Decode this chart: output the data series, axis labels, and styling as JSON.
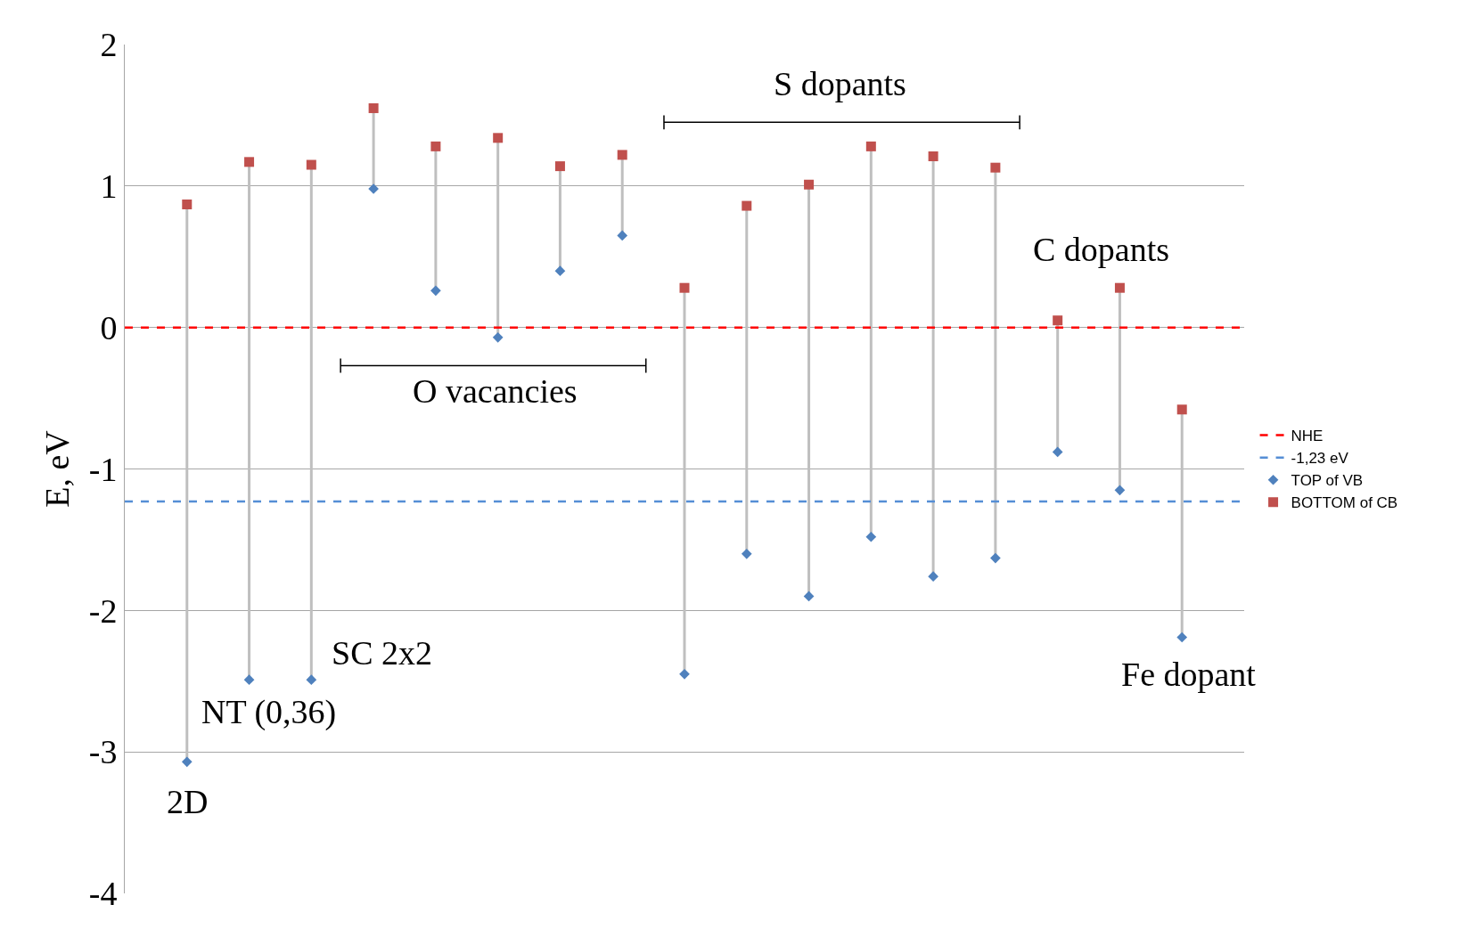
{
  "chart_data": {
    "type": "scatter",
    "ylabel": "E, eV",
    "categories": [
      null,
      null,
      null,
      null,
      null,
      null,
      null,
      null,
      null,
      null,
      null,
      null,
      null,
      null,
      null,
      null,
      null
    ],
    "series": [
      {
        "name": "TOP of VB",
        "color": "#4f81bd",
        "marker": "diamond",
        "values": [
          -3.07,
          -2.49,
          -2.49,
          0.98,
          0.26,
          -0.07,
          0.4,
          0.65,
          -2.45,
          -1.6,
          -1.9,
          -1.48,
          -1.76,
          -1.63,
          -0.88,
          -1.15,
          -2.19
        ]
      },
      {
        "name": "BOTTOM of CB",
        "color": "#c0504d",
        "marker": "square",
        "values": [
          0.87,
          1.17,
          1.15,
          1.55,
          1.28,
          1.34,
          1.14,
          1.22,
          0.28,
          0.86,
          1.01,
          1.28,
          1.21,
          1.13,
          0.05,
          0.28,
          -0.58
        ]
      }
    ],
    "ref_lines": [
      {
        "axis": "y",
        "value": 0,
        "label": "NHE",
        "color": "#ff0000",
        "line_style": "dashed"
      },
      {
        "axis": "y",
        "value": -1.23,
        "label": "-1,23 eV",
        "color": "#558ed5",
        "line_style": "dashed"
      }
    ],
    "annotations": [
      "2D",
      "NT (0,36)",
      "SC 2x2",
      "O vacancies",
      "S dopants",
      "C dopants",
      "Fe dopant"
    ],
    "ylim": [
      -4,
      2
    ],
    "yticks": [
      -4,
      -3,
      -2,
      -1,
      0,
      1,
      2
    ],
    "grid": "y",
    "legend": "right"
  }
}
